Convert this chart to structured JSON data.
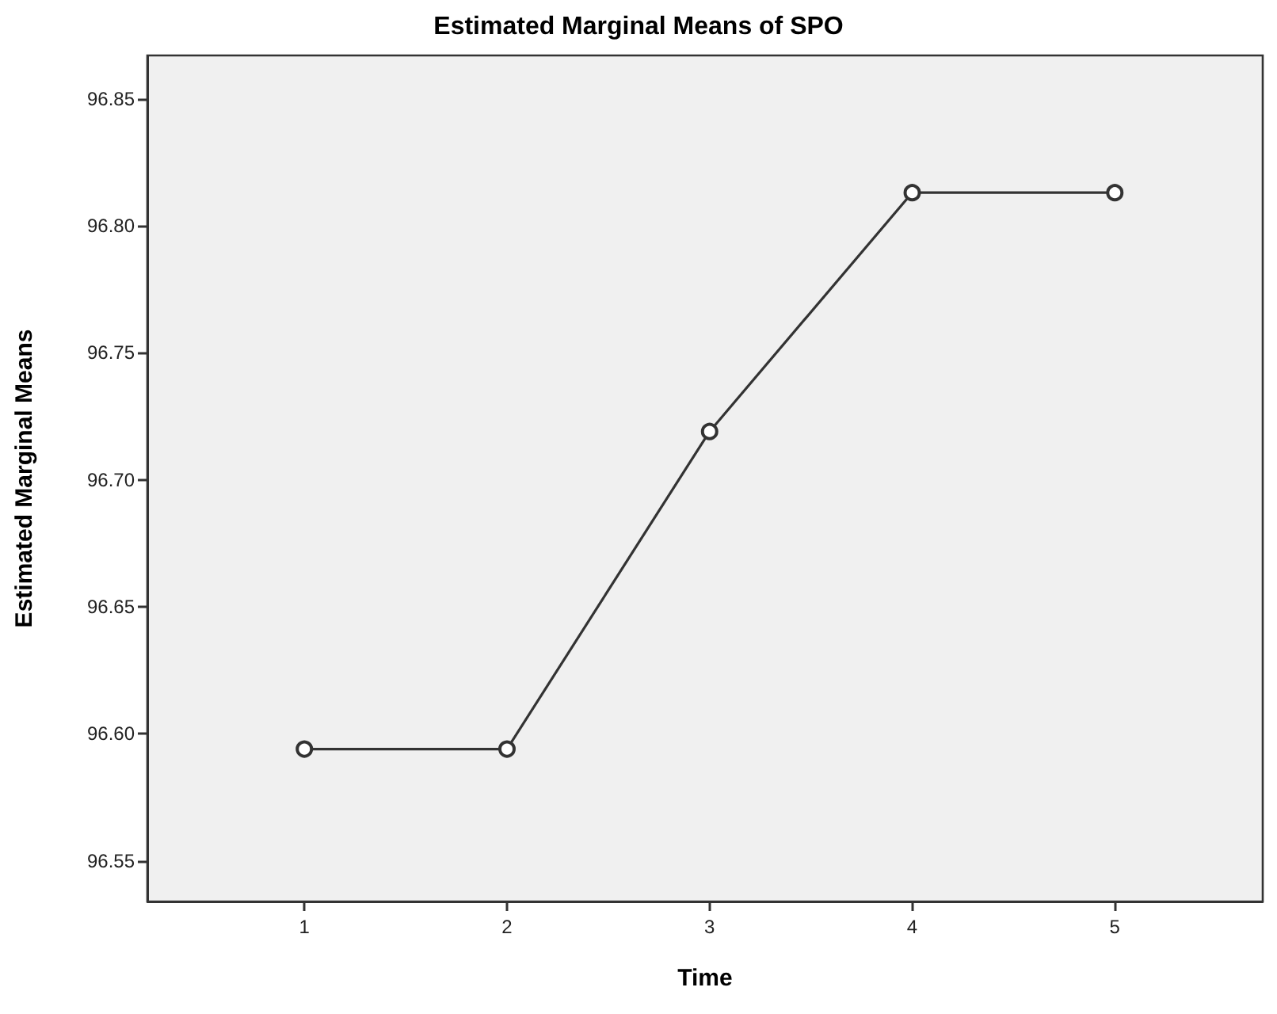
{
  "chart_data": {
    "type": "line",
    "title": "Estimated Marginal Means of SPO",
    "xlabel": "Time",
    "ylabel": "Estimated Marginal Means",
    "x": [
      1,
      2,
      3,
      4,
      5
    ],
    "series": [
      {
        "color": "#333333",
        "values": [
          96.594,
          96.594,
          96.719,
          96.813,
          96.813
        ]
      }
    ],
    "xlim": [
      0.225,
      5.73
    ],
    "xticks": [
      1,
      2,
      3,
      4,
      5
    ],
    "ylim": [
      96.534,
      96.867
    ],
    "yticks": [
      96.55,
      {
        "value": 96.6,
        "label": "96.60"
      },
      96.65,
      {
        "value": 96.7,
        "label": "96.70"
      },
      96.75,
      {
        "value": 96.8,
        "label": "96.80"
      },
      96.85
    ],
    "grid": false,
    "marker": "circle",
    "line_style": "solid"
  }
}
